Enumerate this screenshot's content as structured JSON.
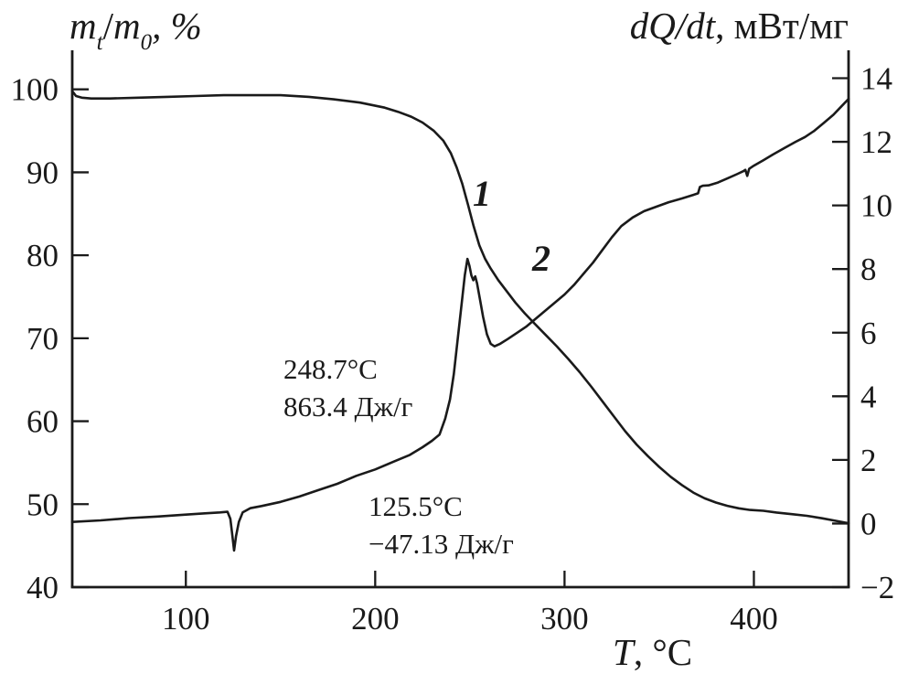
{
  "colors": {
    "ink": "#1a1a1a",
    "background": "#ffffff"
  },
  "axes": {
    "left": {
      "title": {
        "var1": "m",
        "sub1": "t",
        "slash": "/",
        "var2": "m",
        "sub2": "0",
        "suffix": ", %"
      },
      "ticks": [
        "100",
        "90",
        "80",
        "70",
        "60",
        "50",
        "40"
      ]
    },
    "right": {
      "title": {
        "var": "dQ/dt",
        "suffix": ", мВт/мг"
      },
      "ticks": [
        "14",
        "12",
        "10",
        "8",
        "6",
        "4",
        "2",
        "0",
        "−2"
      ]
    },
    "x": {
      "title": {
        "var": "T",
        "suffix": ", °C"
      },
      "ticks": [
        "100",
        "200",
        "300",
        "400"
      ]
    }
  },
  "curve_labels": {
    "curve1": "1",
    "curve2": "2"
  },
  "annotations_view": {
    "peak": {
      "line1": "248.7°C",
      "line2": "863.4 Дж/г"
    },
    "dip": {
      "line1": "125.5°C",
      "line2": "−47.13 Дж/г"
    }
  },
  "chart_data": {
    "type": "line",
    "title": "",
    "xlabel": "T, °C",
    "ylabel_left": "mt/m0, %",
    "ylabel_right": "dQ/dt, мВт/мг",
    "x_range": [
      40,
      450
    ],
    "y_left_range": [
      40,
      100
    ],
    "y_right_range": [
      -2,
      14
    ],
    "x_ticks": [
      100,
      200,
      300,
      400
    ],
    "y_left_ticks": [
      100,
      90,
      80,
      70,
      60,
      50,
      40
    ],
    "y_right_ticks": [
      14,
      12,
      10,
      8,
      6,
      4,
      2,
      0,
      -2
    ],
    "grid": false,
    "legend_position": "none",
    "annotations": [
      {
        "curve": "2",
        "feature": "exothermic peak",
        "temperature_c": 248.7,
        "enthalpy_j_per_g": 863.4
      },
      {
        "curve": "2",
        "feature": "endothermic dip",
        "temperature_c": 125.5,
        "enthalpy_j_per_g": -47.13
      }
    ],
    "series": [
      {
        "name": "1",
        "axis": "left",
        "points": [
          [
            40,
            99.8
          ],
          [
            42,
            99.2
          ],
          [
            45,
            99.0
          ],
          [
            50,
            98.9
          ],
          [
            60,
            98.9
          ],
          [
            75,
            99.0
          ],
          [
            90,
            99.1
          ],
          [
            105,
            99.2
          ],
          [
            120,
            99.3
          ],
          [
            135,
            99.3
          ],
          [
            150,
            99.3
          ],
          [
            165,
            99.1
          ],
          [
            178,
            98.8
          ],
          [
            192,
            98.4
          ],
          [
            205,
            97.8
          ],
          [
            212,
            97.3
          ],
          [
            219,
            96.7
          ],
          [
            225,
            96.0
          ],
          [
            231,
            95.0
          ],
          [
            236,
            93.8
          ],
          [
            240,
            92.3
          ],
          [
            243,
            90.6
          ],
          [
            246,
            88.6
          ],
          [
            249,
            86.1
          ],
          [
            252,
            83.5
          ],
          [
            255,
            81.2
          ],
          [
            258,
            79.6
          ],
          [
            261,
            78.4
          ],
          [
            265,
            77.0
          ],
          [
            269,
            75.8
          ],
          [
            274,
            74.3
          ],
          [
            279,
            73.0
          ],
          [
            284,
            71.8
          ],
          [
            290,
            70.4
          ],
          [
            296,
            69.0
          ],
          [
            302,
            67.5
          ],
          [
            308,
            65.9
          ],
          [
            314,
            64.2
          ],
          [
            320,
            62.4
          ],
          [
            326,
            60.6
          ],
          [
            332,
            58.8
          ],
          [
            338,
            57.2
          ],
          [
            344,
            55.8
          ],
          [
            350,
            54.5
          ],
          [
            356,
            53.3
          ],
          [
            362,
            52.3
          ],
          [
            368,
            51.4
          ],
          [
            374,
            50.7
          ],
          [
            380,
            50.2
          ],
          [
            386,
            49.8
          ],
          [
            392,
            49.5
          ],
          [
            398,
            49.3
          ],
          [
            405,
            49.2
          ],
          [
            412,
            49.0
          ],
          [
            420,
            48.8
          ],
          [
            428,
            48.6
          ],
          [
            436,
            48.3
          ],
          [
            443,
            48.0
          ],
          [
            450,
            47.7
          ]
        ]
      },
      {
        "name": "2",
        "axis": "right",
        "points": [
          [
            40,
            0.05
          ],
          [
            55,
            0.1
          ],
          [
            70,
            0.17
          ],
          [
            85,
            0.22
          ],
          [
            100,
            0.28
          ],
          [
            110,
            0.32
          ],
          [
            118,
            0.35
          ],
          [
            122,
            0.37
          ],
          [
            123.5,
            0.15
          ],
          [
            124.5,
            -0.35
          ],
          [
            125.5,
            -0.85
          ],
          [
            126.5,
            -0.4
          ],
          [
            128,
            0.05
          ],
          [
            130,
            0.35
          ],
          [
            134,
            0.48
          ],
          [
            140,
            0.55
          ],
          [
            150,
            0.68
          ],
          [
            160,
            0.85
          ],
          [
            170,
            1.05
          ],
          [
            180,
            1.25
          ],
          [
            190,
            1.5
          ],
          [
            200,
            1.7
          ],
          [
            210,
            1.95
          ],
          [
            218,
            2.15
          ],
          [
            225,
            2.4
          ],
          [
            230,
            2.6
          ],
          [
            234,
            2.8
          ],
          [
            237,
            3.3
          ],
          [
            239.5,
            3.9
          ],
          [
            241.5,
            4.7
          ],
          [
            243,
            5.5
          ],
          [
            244.5,
            6.3
          ],
          [
            246,
            7.1
          ],
          [
            247.3,
            7.8
          ],
          [
            248.7,
            8.32
          ],
          [
            249.8,
            8.1
          ],
          [
            250.8,
            7.8
          ],
          [
            251.8,
            7.65
          ],
          [
            252.8,
            7.77
          ],
          [
            253.8,
            7.55
          ],
          [
            255.5,
            7.0
          ],
          [
            257,
            6.5
          ],
          [
            259,
            5.95
          ],
          [
            261,
            5.65
          ],
          [
            263,
            5.57
          ],
          [
            266,
            5.65
          ],
          [
            270,
            5.8
          ],
          [
            275,
            6.0
          ],
          [
            280,
            6.2
          ],
          [
            285,
            6.45
          ],
          [
            290,
            6.7
          ],
          [
            295,
            6.95
          ],
          [
            300,
            7.2
          ],
          [
            305,
            7.5
          ],
          [
            310,
            7.85
          ],
          [
            315,
            8.2
          ],
          [
            320,
            8.6
          ],
          [
            325,
            9.0
          ],
          [
            330,
            9.35
          ],
          [
            336,
            9.62
          ],
          [
            342,
            9.82
          ],
          [
            348,
            9.95
          ],
          [
            355,
            10.1
          ],
          [
            362,
            10.22
          ],
          [
            368,
            10.33
          ],
          [
            370.5,
            10.38
          ],
          [
            371.5,
            10.58
          ],
          [
            373,
            10.62
          ],
          [
            376,
            10.63
          ],
          [
            381,
            10.72
          ],
          [
            386,
            10.85
          ],
          [
            391,
            10.98
          ],
          [
            394.5,
            11.08
          ],
          [
            395.5,
            11.12
          ],
          [
            396.5,
            10.93
          ],
          [
            397.5,
            11.15
          ],
          [
            400,
            11.25
          ],
          [
            405,
            11.42
          ],
          [
            410,
            11.6
          ],
          [
            416,
            11.8
          ],
          [
            422,
            12.0
          ],
          [
            427,
            12.15
          ],
          [
            432,
            12.35
          ],
          [
            437,
            12.6
          ],
          [
            442,
            12.85
          ],
          [
            446,
            13.1
          ],
          [
            450,
            13.35
          ]
        ]
      }
    ]
  }
}
